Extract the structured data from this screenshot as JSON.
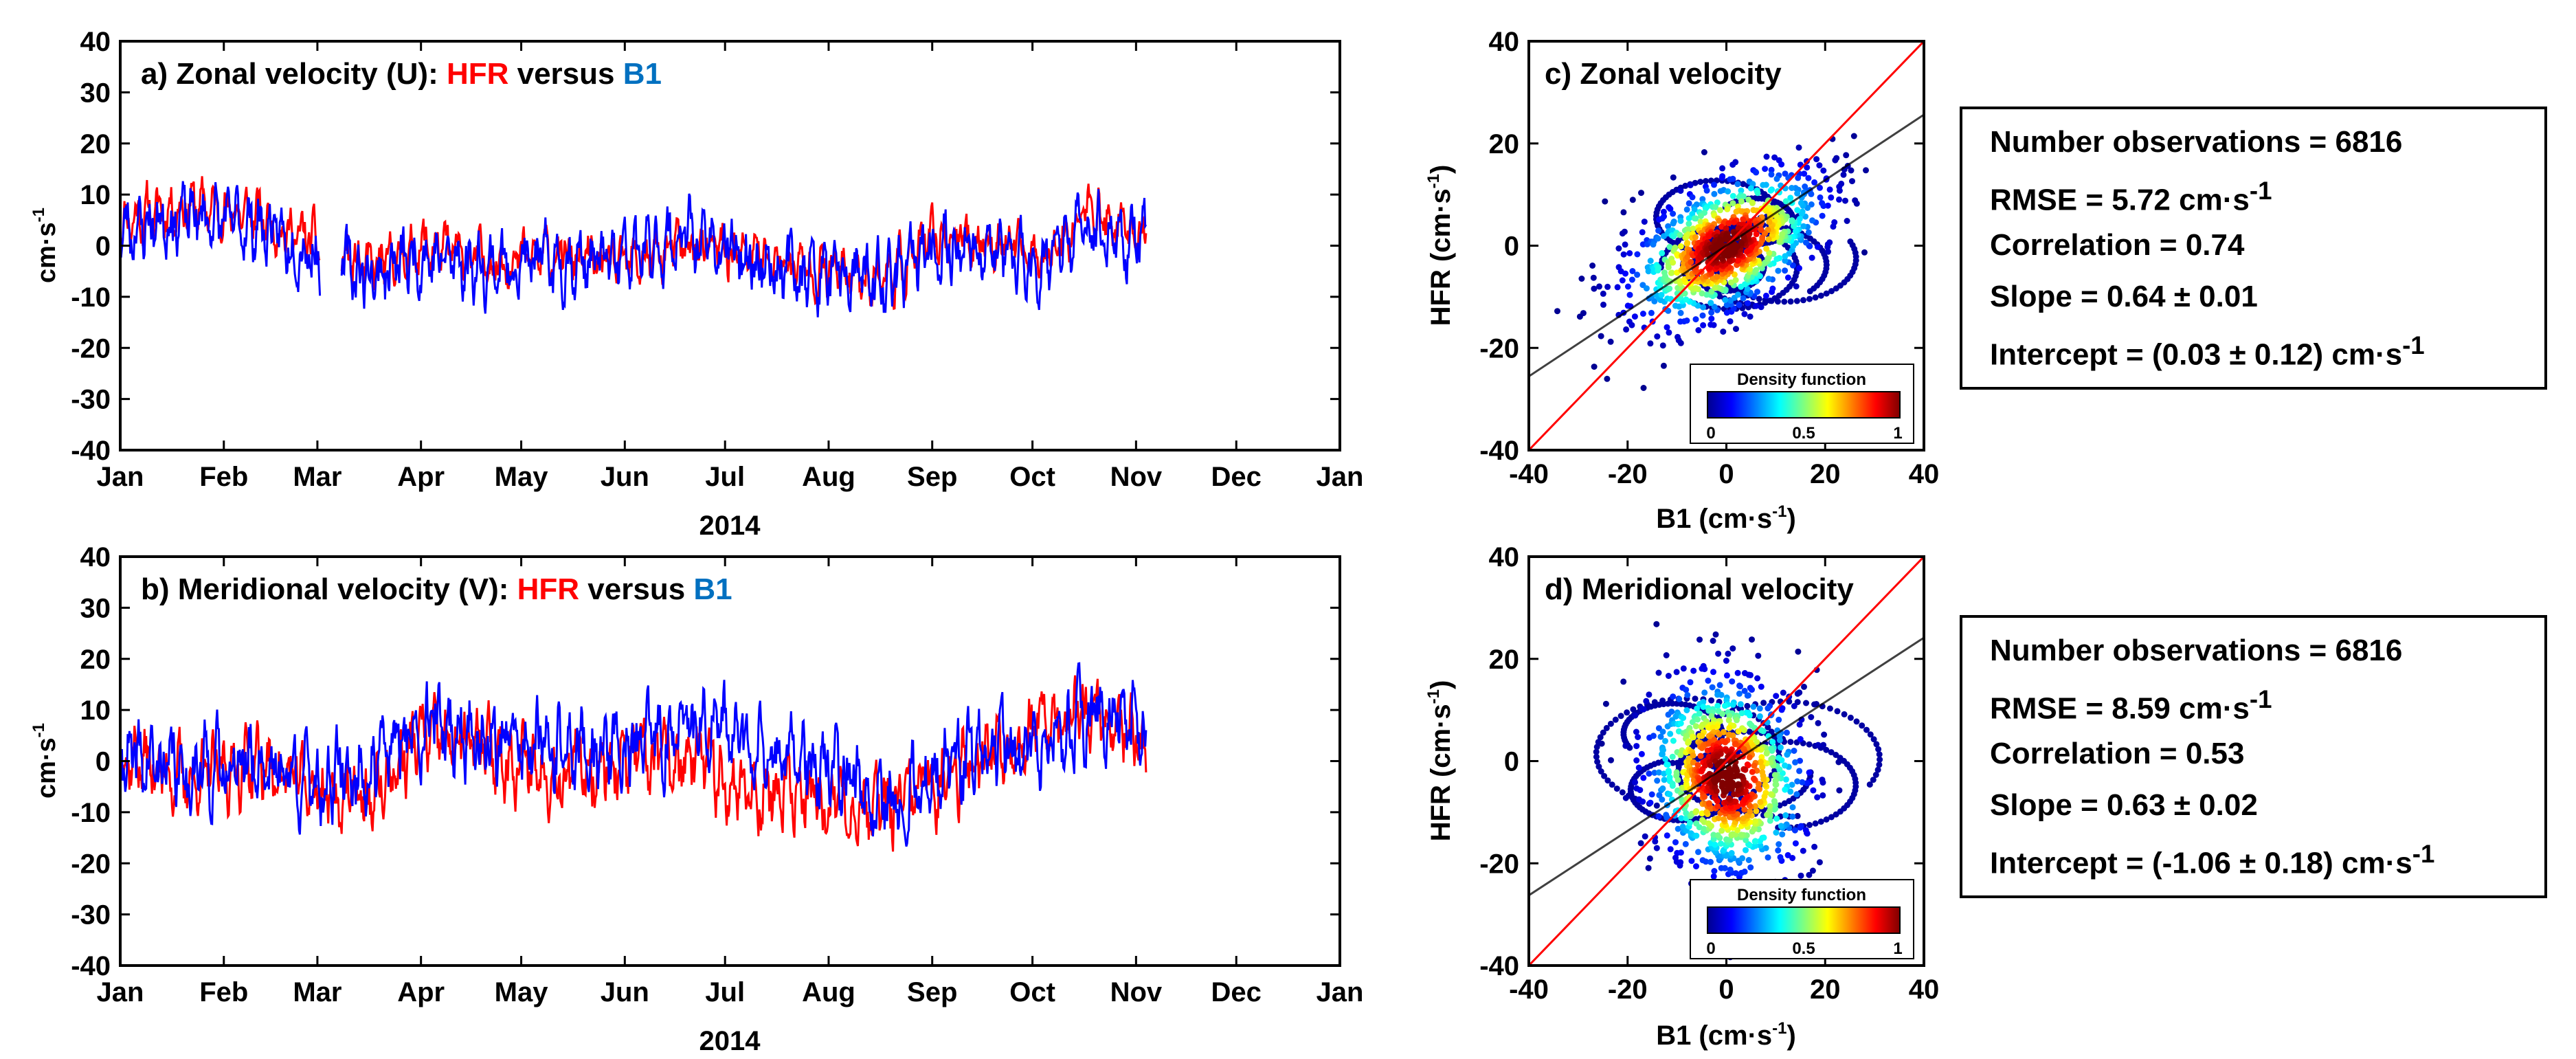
{
  "chart_data": [
    {
      "panel": "a",
      "type": "line",
      "title_prefix": "a) Zonal velocity (U): ",
      "title_hfr": "HFR",
      "title_versus": " versus ",
      "title_b1": "B1",
      "ylabel": "cm·s",
      "ylabel_sup": "-1",
      "xlabel": "2014",
      "ylim": [
        -40,
        40
      ],
      "yticks": [
        -40,
        -30,
        -20,
        -10,
        0,
        10,
        20,
        30,
        40
      ],
      "month_labels": [
        "Jan",
        "Feb",
        "Mar",
        "Apr",
        "May",
        "Jun",
        "Jul",
        "Aug",
        "Sep",
        "Oct",
        "Nov",
        "Dec",
        "Jan"
      ],
      "month_days": [
        0,
        31,
        59,
        90,
        120,
        151,
        181,
        212,
        243,
        273,
        304,
        334,
        365
      ],
      "xlim_days": [
        0,
        365
      ],
      "data_end_day": 307,
      "gap_days": [
        [
          60,
          66
        ]
      ],
      "series": [
        {
          "name": "HFR",
          "color": "#ff0000",
          "amp": 7,
          "seed": 11,
          "mean_knots_day": [
            0,
            20,
            40,
            60,
            75,
            90,
            110,
            130,
            150,
            170,
            190,
            210,
            230,
            245,
            260,
            275,
            290,
            300,
            307
          ],
          "mean_knots_val": [
            5,
            8,
            6,
            0,
            -5,
            0,
            -3,
            -2,
            -4,
            0,
            -2,
            -5,
            -6,
            2,
            1,
            -2,
            7,
            3,
            2
          ]
        },
        {
          "name": "B1",
          "color": "#0000ff",
          "amp": 9,
          "seed": 23,
          "mean_knots_day": [
            0,
            20,
            40,
            60,
            75,
            90,
            110,
            130,
            150,
            170,
            190,
            210,
            230,
            245,
            260,
            275,
            290,
            300,
            307
          ],
          "mean_knots_val": [
            3,
            6,
            4,
            -2,
            -6,
            -2,
            -4,
            -3,
            -3,
            2,
            -3,
            -6,
            -7,
            0,
            -1,
            -4,
            4,
            1,
            1
          ]
        }
      ]
    },
    {
      "panel": "b",
      "type": "line",
      "title_prefix": "b) Meridional velocity (V): ",
      "title_hfr": "HFR",
      "title_versus": " versus ",
      "title_b1": "B1",
      "ylabel": "cm·s",
      "ylabel_sup": "-1",
      "xlabel": "2014",
      "ylim": [
        -40,
        40
      ],
      "yticks": [
        -40,
        -30,
        -20,
        -10,
        0,
        10,
        20,
        30,
        40
      ],
      "month_labels": [
        "Jan",
        "Feb",
        "Mar",
        "Apr",
        "May",
        "Jun",
        "Jul",
        "Aug",
        "Sep",
        "Oct",
        "Nov",
        "Dec",
        "Jan"
      ],
      "month_days": [
        0,
        31,
        59,
        90,
        120,
        151,
        181,
        212,
        243,
        273,
        304,
        334,
        365
      ],
      "xlim_days": [
        0,
        365
      ],
      "data_end_day": 307,
      "gap_days": [],
      "series": [
        {
          "name": "HFR",
          "color": "#ff0000",
          "amp": 10,
          "seed": 37,
          "mean_knots_day": [
            0,
            20,
            40,
            60,
            75,
            90,
            110,
            130,
            150,
            170,
            190,
            210,
            230,
            245,
            260,
            275,
            290,
            300,
            307
          ],
          "mean_knots_val": [
            2,
            -4,
            0,
            -6,
            -8,
            5,
            2,
            -2,
            0,
            0,
            -6,
            -8,
            -10,
            -4,
            3,
            6,
            10,
            8,
            2
          ]
        },
        {
          "name": "B1",
          "color": "#0000ff",
          "amp": 11,
          "seed": 41,
          "mean_knots_day": [
            0,
            20,
            40,
            60,
            75,
            90,
            110,
            130,
            150,
            170,
            190,
            210,
            230,
            245,
            260,
            275,
            290,
            300,
            307
          ],
          "mean_knots_val": [
            0,
            -2,
            0,
            -4,
            -2,
            8,
            4,
            2,
            2,
            6,
            4,
            -2,
            -8,
            -2,
            2,
            2,
            8,
            10,
            6
          ]
        }
      ]
    },
    {
      "panel": "c",
      "type": "scatter",
      "title": "c) Zonal velocity",
      "xlabel": "B1 (cm·s",
      "xlabel_sup": "-1",
      "xlabel_end": ")",
      "ylabel": "HFR (cm·s",
      "ylabel_sup": "-1",
      "ylabel_end": ")",
      "xlim": [
        -40,
        40
      ],
      "ylim": [
        -40,
        40
      ],
      "xticks": [
        -40,
        -20,
        0,
        20,
        40
      ],
      "yticks": [
        -40,
        -20,
        0,
        20,
        40
      ],
      "one_to_one_color": "#ff0000",
      "fit_color": "#000000",
      "slope": 0.64,
      "intercept": 0.03,
      "cloud_center": [
        0,
        0
      ],
      "cloud_sx": 11,
      "cloud_sy": 6,
      "cloud_angle_deg": 30,
      "colorbar_label": "Density function",
      "colorbar_ticks": [
        "0",
        "0.5",
        "1"
      ]
    },
    {
      "panel": "d",
      "type": "scatter",
      "title": "d) Meridional velocity",
      "xlabel": "B1 (cm·s",
      "xlabel_sup": "-1",
      "xlabel_end": ")",
      "ylabel": "HFR (cm·s",
      "ylabel_sup": "-1",
      "ylabel_end": ")",
      "xlim": [
        -40,
        40
      ],
      "ylim": [
        -40,
        40
      ],
      "xticks": [
        -40,
        -20,
        0,
        20,
        40
      ],
      "yticks": [
        -40,
        -20,
        0,
        20,
        40
      ],
      "one_to_one_color": "#ff0000",
      "fit_color": "#000000",
      "slope": 0.63,
      "intercept": -1.06,
      "cloud_center": [
        0,
        -3
      ],
      "cloud_sx": 8,
      "cloud_sy": 10,
      "cloud_angle_deg": 20,
      "colorbar_label": "Density function",
      "colorbar_ticks": [
        "0",
        "0.5",
        "1"
      ]
    }
  ],
  "stats": [
    {
      "n_obs": "Number observations = 6816",
      "rmse": "RMSE = 5.72 cm·s",
      "rmse_sup": "-1",
      "correlation": "Correlation = 0.74",
      "slope": "Slope = 0.64 ± 0.01",
      "intercept": "Intercept = (0.03 ± 0.12) cm·s",
      "intercept_sup": "-1"
    },
    {
      "n_obs": "Number observations = 6816",
      "rmse": "RMSE = 8.59 cm·s",
      "rmse_sup": "-1",
      "correlation": "Correlation = 0.53",
      "slope": "Slope = 0.63 ± 0.02",
      "intercept": "Intercept = (-1.06 ± 0.18) cm·s",
      "intercept_sup": "-1"
    }
  ],
  "colors": {
    "hfr": "#ff0000",
    "b1": "#0070c0",
    "axis": "#000000"
  }
}
